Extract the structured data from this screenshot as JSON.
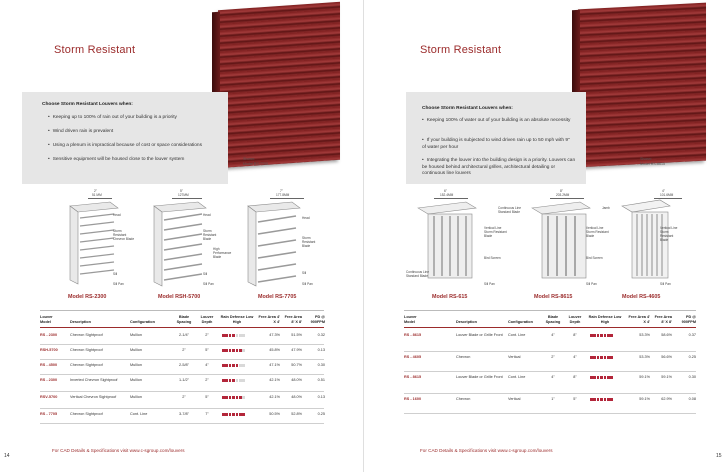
{
  "left": {
    "heading": "Storm Resistant",
    "choose_title": "Choose Storm Resistant Louvers when:",
    "bullets": [
      "Keeping up to 100% of rain out of your building is a priority",
      "Wind driven rain is prevalent",
      "Using a plenum is impractical because of cost or space considerations",
      "Sensitive equipment will be housed close to the louver system"
    ],
    "photo_label": [
      "Shown:",
      "Model RS-7705"
    ],
    "diagrams": [
      {
        "dim": [
          "2\"",
          "51 MM"
        ],
        "labels": [
          "Head",
          "Storm Resistant Chevron Blade",
          "Sill",
          "Sill Pan"
        ]
      },
      {
        "dim": [
          "5\"",
          "127MM"
        ],
        "labels": [
          "Head",
          "Storm Resistant Blade",
          "High Performance Blade",
          "Sill",
          "Sill Pan"
        ]
      },
      {
        "dim": [
          "7\"",
          "177.8MM"
        ],
        "labels": [
          "Head",
          "Storm Resistant Blade",
          "Sill",
          "Sill Pan"
        ]
      }
    ],
    "models": [
      "Model RS-2300",
      "Model RSH-5700",
      "Model RS-7705"
    ],
    "table": {
      "headers": [
        "Louver Model",
        "Description",
        "Configuration",
        "Blade Spacing",
        "Louver Depth",
        "Rain Defense Low High",
        "Free Area 4' X 4'",
        "Free Area 8' X 8'",
        "PD @ 900FPM"
      ],
      "rows": [
        {
          "model": "RS - 2300",
          "desc": "Chevron Sightproof",
          "config": "Mullion",
          "spacing": "2-1/4\"",
          "depth": "2\"",
          "bars": 4,
          "fa4": "47.3%",
          "fa8": "51.5%",
          "pd": "0.32"
        },
        {
          "model": "RSH-5700",
          "desc": "Chevron Sightproof",
          "config": "Mullion",
          "spacing": "2\"",
          "depth": "5\"",
          "bars": 6,
          "fa4": "45.8%",
          "fa8": "47.9%",
          "pd": "0.13"
        },
        {
          "model": "RS - 4500",
          "desc": "Chevron Sightproof",
          "config": "Mullion",
          "spacing": "2-5/8\"",
          "depth": "4\"",
          "bars": 5,
          "fa4": "47.1%",
          "fa8": "50.7%",
          "pd": "0.30"
        },
        {
          "model": "RS - 2300",
          "desc": "Inverted Chevron Sightproof",
          "config": "Mullion",
          "spacing": "1-1/2\"",
          "depth": "2\"",
          "bars": 4,
          "fa4": "42.1%",
          "fa8": "48.0%",
          "pd": "0.51"
        },
        {
          "model": "RSV-5700",
          "desc": "Vertical Chevron Sightproof",
          "config": "Mullion",
          "spacing": "2\"",
          "depth": "5\"",
          "bars": 6,
          "fa4": "42.1%",
          "fa8": "48.0%",
          "pd": "0.13"
        },
        {
          "model": "RS - 7705",
          "desc": "Chevron Sightproof",
          "config": "Cont. Line",
          "spacing": "3-7/8\"",
          "depth": "7\"",
          "bars": 7,
          "fa4": "50.5%",
          "fa8": "52.8%",
          "pd": "0.25"
        }
      ]
    },
    "footer": "For CAD Details & Specifications visit www.c-sgroup.com/louvers",
    "page_number": "14"
  },
  "right": {
    "heading": "Storm Resistant",
    "choose_title": "Choose Storm Resistant Louvers when:",
    "bullets": [
      "Keeping 100% of water out of your building is an absolute necessity",
      "If your building is subjected to wind driven rain up to 50 mph with 9\" of water per hour",
      "Integrating the louver into the building design is a priority. Louvers can be housed behind architectural grilles, architectural detailing or continuous line louvers"
    ],
    "photo_label": [
      "Shown:",
      "Model RS-8615"
    ],
    "diagrams": [
      {
        "dim": [
          "6\"",
          "152.4MM"
        ],
        "labels": [
          "Continuous Line Standard Blade",
          "Vertical Line Storm Resistant Blade",
          "Bird Screen",
          "Continuous Line Standard Blade",
          "Sill Pan"
        ]
      },
      {
        "dim": [
          "8\"",
          "203.2MM"
        ],
        "labels": [
          "Vertical Line Storm Resistant Blade",
          "Bird Screen",
          "Sill Pan"
        ]
      },
      {
        "dim": [
          "4\"",
          "101.6MM"
        ],
        "labels": [
          "Jamb",
          "Vertical Line Storm Resistant Blade",
          "Sill Pan"
        ]
      }
    ],
    "models": [
      "Model RS-615",
      "Model RS-8615",
      "Model RS-4605"
    ],
    "table": {
      "headers": [
        "Louver Model",
        "Description",
        "Configuration",
        "Blade Spacing",
        "Louver Depth",
        "Rain Defense Low High",
        "Free Area 4' X 4'",
        "Free Area 8' X 8'",
        "PD @ 900FPM"
      ],
      "rows": [
        {
          "model": "RS - 8615",
          "desc": "Louver Blade or Grille Front",
          "config": "Cont. Line",
          "spacing": "4\"",
          "depth": "8\"",
          "bars": 7,
          "fa4": "53.3%",
          "fa8": "58.6%",
          "pd": "0.37"
        },
        {
          "model": "RS - 4605",
          "desc": "Chevron",
          "config": "Vertical",
          "spacing": "2\"",
          "depth": "4\"",
          "bars": 7,
          "fa4": "53.3%",
          "fa8": "56.6%",
          "pd": "0.25"
        },
        {
          "model": "RS - 8615",
          "desc": "Louver Blade or Grille Front",
          "config": "Cont. Line",
          "spacing": "4\"",
          "depth": "8\"",
          "bars": 7,
          "fa4": "59.1%",
          "fa8": "59.1%",
          "pd": "0.30"
        },
        {
          "model": "RS - 1600",
          "desc": "Chevron",
          "config": "Vertical",
          "spacing": "1\"",
          "depth": "5\"",
          "bars": 7,
          "fa4": "59.1%",
          "fa8": "62.9%",
          "pd": "0.08"
        }
      ]
    },
    "footer": "For CAD Details & Specifications visit www.c-sgroup.com/louvers",
    "page_number": "15"
  },
  "colors": {
    "accent": "#9b2b2b",
    "bar_on": "#b3263a",
    "bar_off": "#d9d9d9"
  }
}
